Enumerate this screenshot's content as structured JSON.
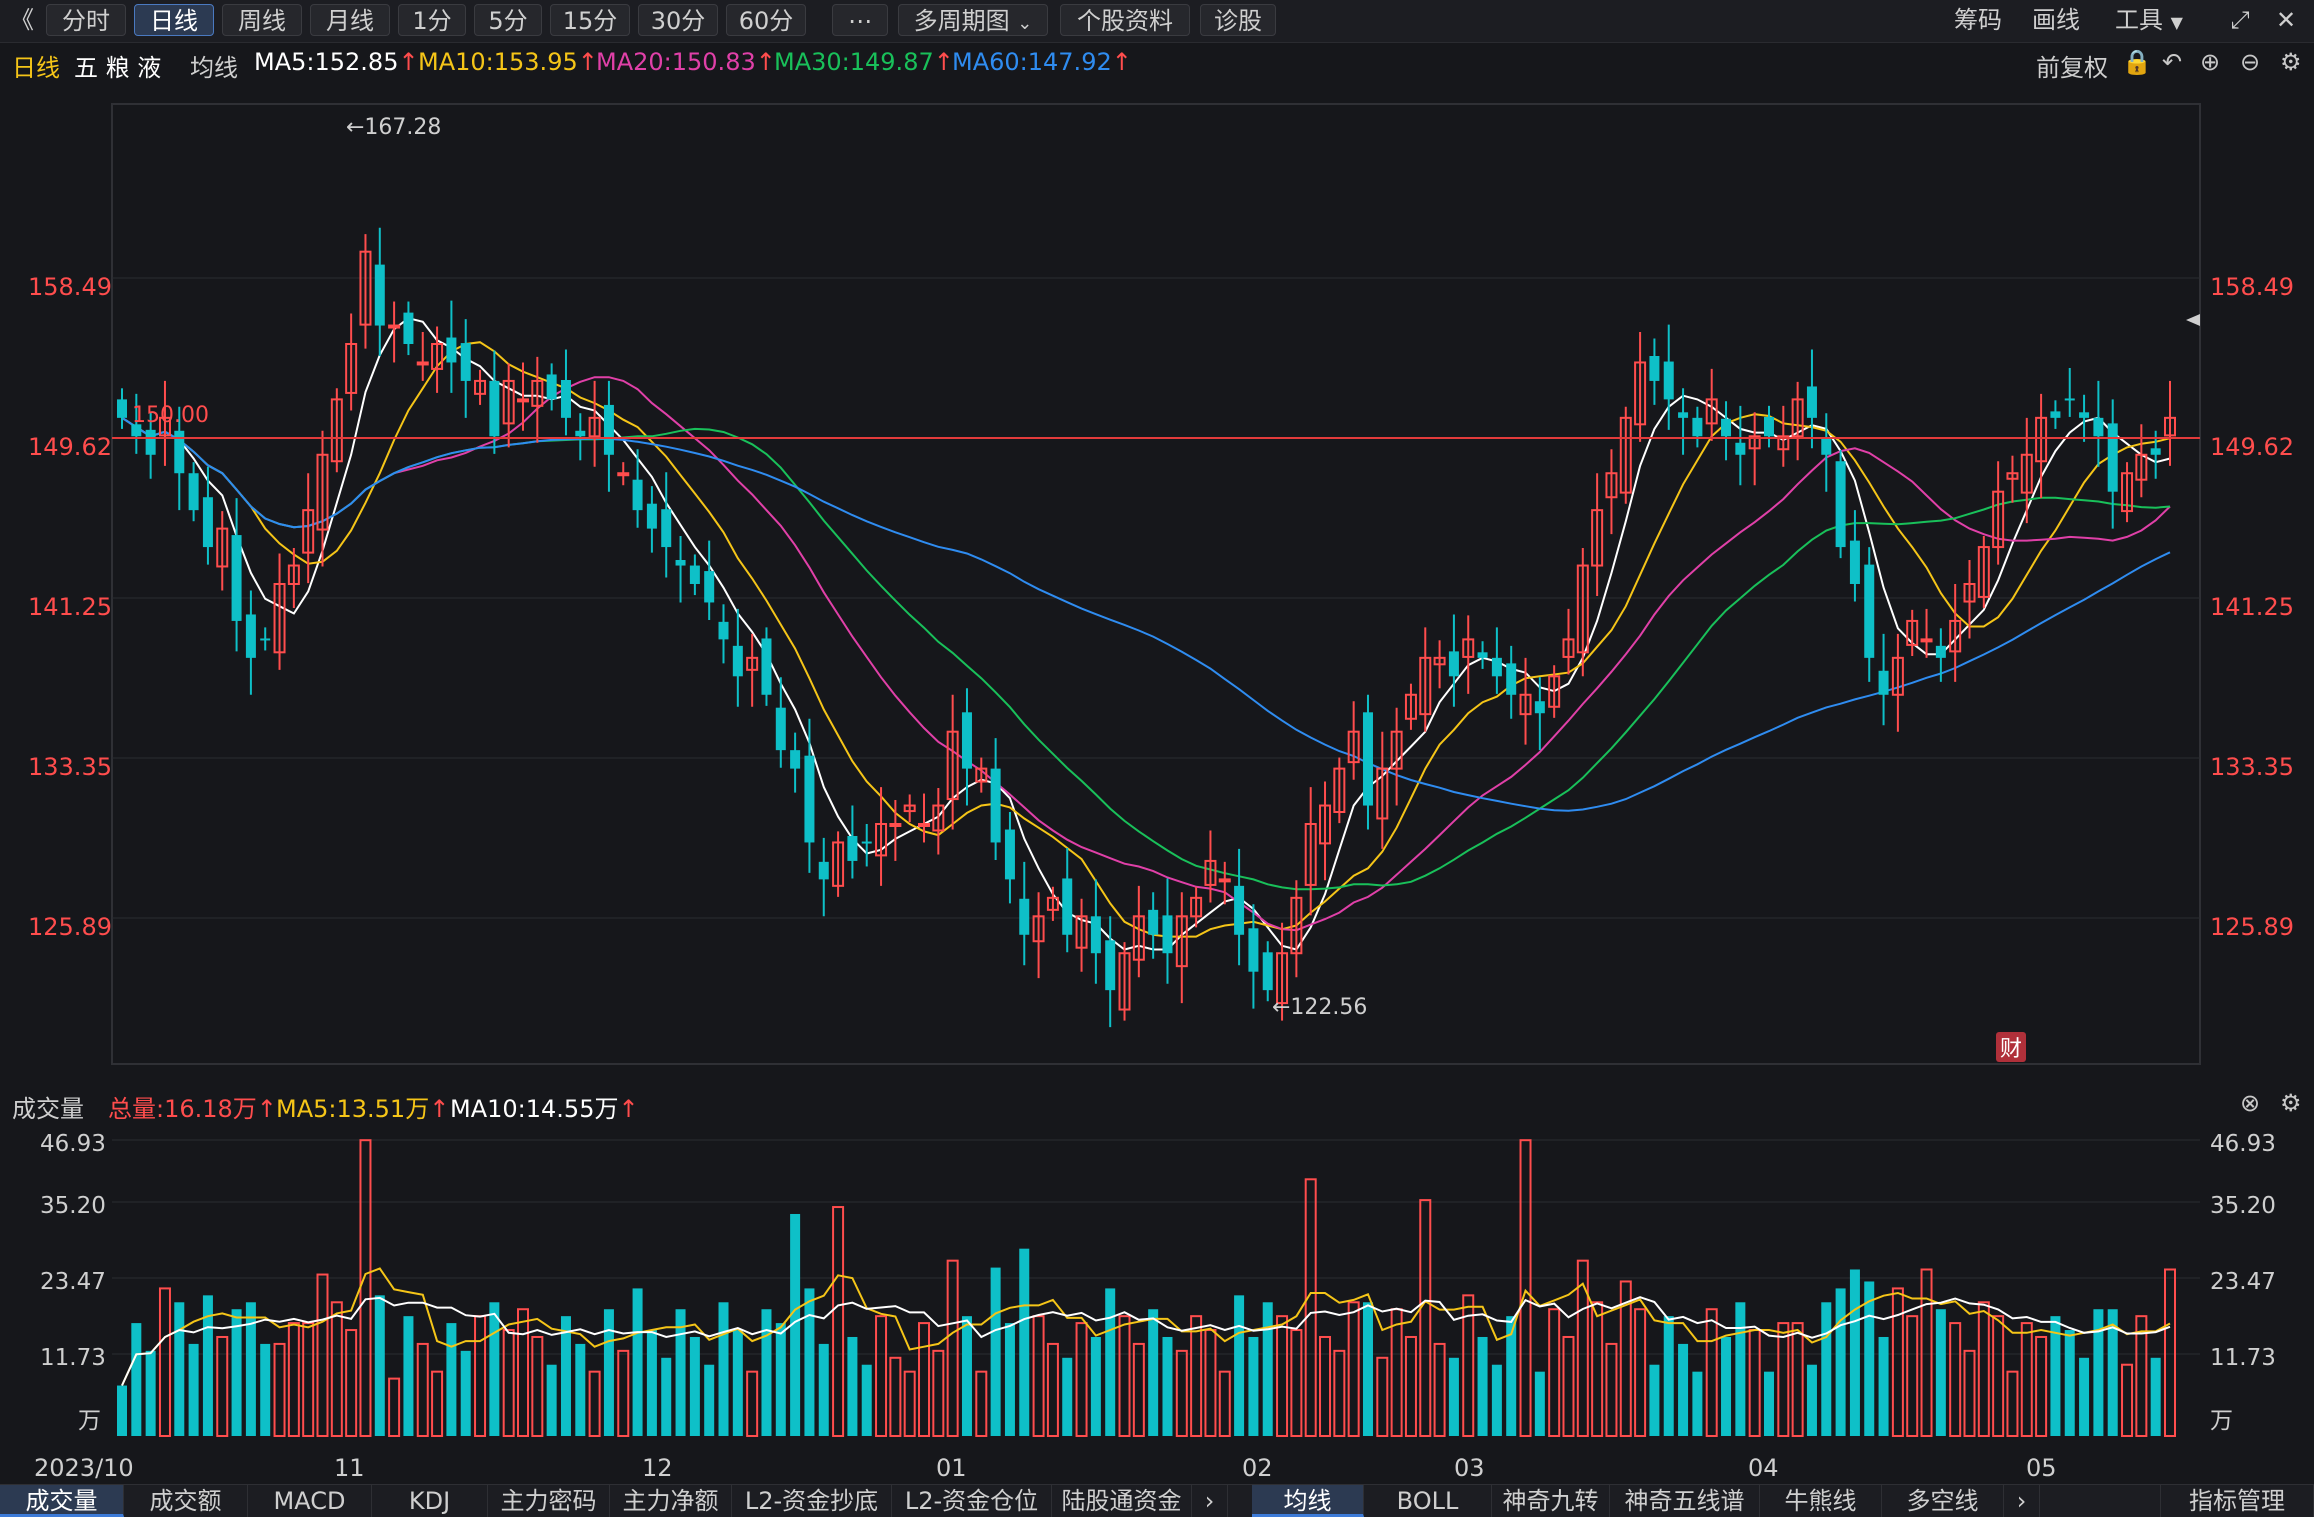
{
  "toolbar": {
    "back": "《",
    "tabs": [
      "分时",
      "日线",
      "周线",
      "月线",
      "1分",
      "5分",
      "15分",
      "30分",
      "60分",
      "⋯",
      "多周期图",
      "个股资料",
      "诊股"
    ],
    "active_tab": "日线",
    "right": [
      "筹码",
      "画线",
      "工具"
    ]
  },
  "info": {
    "period": "日线",
    "stock_name": "五 粮 液",
    "ma_label": "均线",
    "ma5": "MA5:152.85",
    "ma10": "MA10:153.95",
    "ma20": "MA20:150.83",
    "ma30": "MA30:149.87",
    "ma60": "MA60:147.92",
    "adjust": "前复权"
  },
  "price_axis": [
    "158.49",
    "149.62",
    "141.25",
    "133.35",
    "125.89"
  ],
  "annotations": {
    "high": "←167.28",
    "low": "←122.56",
    "ref_line": "150.00",
    "cai_badge": "财"
  },
  "volume_info": {
    "label": "成交量",
    "total": "总量:16.18万",
    "ma5": "MA5:13.51万",
    "ma10": "MA10:14.55万"
  },
  "volume_axis": [
    "46.93",
    "35.20",
    "23.47",
    "11.73",
    "万"
  ],
  "date_axis": [
    "2023/10",
    "11",
    "12",
    "01",
    "02",
    "03",
    "04",
    "05"
  ],
  "bottom_left_tabs": [
    "成交量",
    "成交额",
    "MACD",
    "KDJ",
    "主力密码",
    "主力净额",
    "L2-资金抄底",
    "L2-资金仓位",
    "陆股通资金"
  ],
  "bottom_right_tabs": [
    "均线",
    "BOLL",
    "神奇九转",
    "神奇五线谱",
    "牛熊线",
    "多空线"
  ],
  "bottom_manage": "指标管理",
  "colors": {
    "up": "#ff4d4d",
    "down": "#0ec0c8",
    "ma5": "#ffffff",
    "ma10": "#f5c518",
    "ma20": "#e040a8",
    "ma30": "#19c05a",
    "ma60": "#2f8cf0"
  },
  "chart_data": {
    "type": "candlestick",
    "y_range": [
      120,
      172
    ],
    "closes": [
      155,
      154,
      153,
      155,
      152,
      150,
      148,
      149,
      144,
      142,
      143,
      146,
      147,
      150,
      153,
      156,
      159,
      164,
      160,
      160,
      159,
      158,
      159,
      158,
      157,
      157,
      154,
      157,
      156,
      157,
      156,
      155,
      154,
      155,
      153,
      152,
      150,
      149,
      148,
      147,
      146,
      145,
      143,
      141,
      142,
      140,
      137,
      136,
      132,
      130,
      132,
      131,
      132,
      133,
      133,
      134,
      133,
      134,
      138,
      136,
      136,
      132,
      130,
      127,
      128,
      129,
      127,
      128,
      126,
      124,
      126,
      128,
      127,
      126,
      128,
      129,
      131,
      130,
      127,
      125,
      124,
      126,
      129,
      133,
      134,
      136,
      138,
      134,
      136,
      138,
      140,
      142,
      142,
      141,
      143,
      142,
      141,
      140,
      140,
      139,
      141,
      143,
      147,
      150,
      152,
      155,
      158,
      157,
      156,
      155,
      154,
      156,
      154,
      153,
      154,
      154,
      154,
      156,
      155,
      153,
      148,
      146,
      142,
      140,
      142,
      144,
      143,
      142,
      144,
      146,
      148,
      151,
      152,
      153,
      155,
      155,
      156,
      155,
      154,
      151,
      152,
      153,
      153,
      155
    ]
  }
}
